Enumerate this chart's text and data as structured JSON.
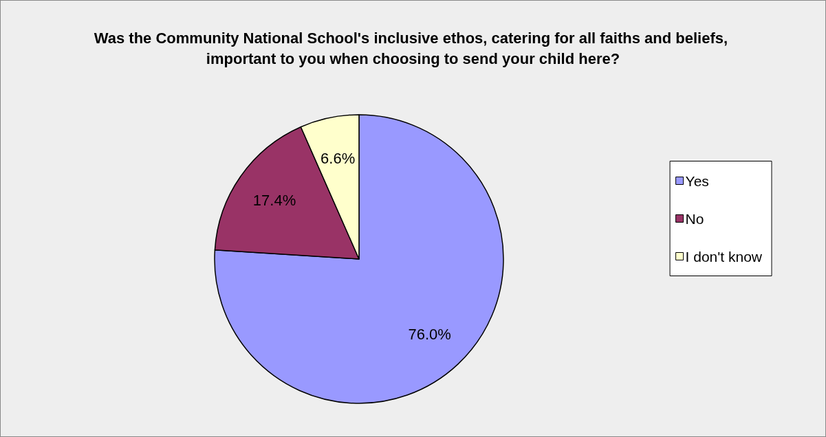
{
  "chart_data": {
    "type": "pie",
    "title": "Was the Community National School's inclusive ethos, catering for all faiths and beliefs, important to you when choosing to send your child here?",
    "categories": [
      "Yes",
      "No",
      "I don't know"
    ],
    "values": [
      76.0,
      17.4,
      6.6
    ],
    "colors": [
      "#9999ff",
      "#993366",
      "#ffffcc"
    ],
    "value_labels": [
      "76.0%",
      "17.4%",
      "6.6%"
    ],
    "legend": "right"
  }
}
